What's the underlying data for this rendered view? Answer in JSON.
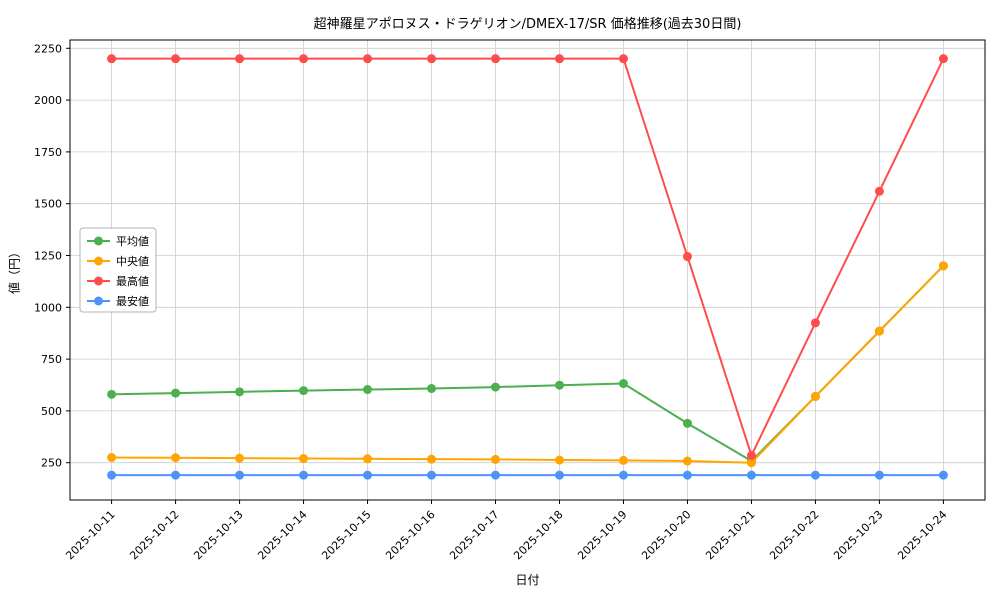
{
  "chart_data": {
    "type": "line",
    "title": "超神羅星アポロヌス・ドラゲリオン/DMEX-17/SR 価格推移(過去30日間)",
    "xlabel": "日付",
    "ylabel": "値（円）",
    "categories": [
      "2025-10-11",
      "2025-10-12",
      "2025-10-13",
      "2025-10-14",
      "2025-10-15",
      "2025-10-16",
      "2025-10-17",
      "2025-10-18",
      "2025-10-19",
      "2025-10-20",
      "2025-10-21",
      "2025-10-22",
      "2025-10-23",
      "2025-10-24"
    ],
    "series": [
      {
        "key": "average",
        "name": "平均値",
        "color": "#4caf50",
        "values": [
          580,
          586,
          592,
          598,
          603,
          608,
          615,
          624,
          632,
          440,
          258,
          570,
          885,
          1200
        ]
      },
      {
        "key": "median",
        "name": "中央値",
        "color": "#ffa500",
        "values": [
          275,
          274,
          272,
          270,
          269,
          267,
          266,
          263,
          261,
          258,
          250,
          570,
          885,
          1200
        ]
      },
      {
        "key": "max",
        "name": "最高値",
        "color": "#ff4c4c",
        "values": [
          2200,
          2200,
          2200,
          2200,
          2200,
          2200,
          2200,
          2200,
          2200,
          1245,
          285,
          925,
          1560,
          2200
        ]
      },
      {
        "key": "min",
        "name": "最安値",
        "color": "#4d94ff",
        "values": [
          190,
          190,
          190,
          190,
          190,
          190,
          190,
          190,
          190,
          190,
          190,
          190,
          190,
          190
        ]
      }
    ],
    "yticks": [
      250,
      500,
      750,
      1000,
      1250,
      1500,
      1750,
      2000,
      2250
    ],
    "ylim": [
      70,
      2290
    ],
    "grid": true,
    "grid_color": "#cccccc",
    "legend_position": "upper-left"
  }
}
